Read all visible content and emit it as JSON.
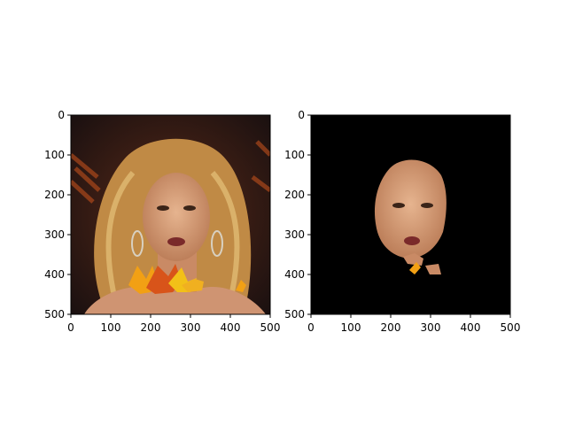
{
  "chart_data": [
    {
      "type": "image",
      "content": "portrait-photo",
      "description_icon": "face-with-leaf-overlay",
      "x_ticks": [
        "0",
        "100",
        "200",
        "300",
        "400",
        "500"
      ],
      "y_ticks": [
        "0",
        "100",
        "200",
        "300",
        "400",
        "500"
      ],
      "xlim": [
        0,
        500
      ],
      "ylim": [
        500,
        0
      ]
    },
    {
      "type": "image",
      "content": "segmentation-mask-result",
      "description_icon": "masked-face",
      "x_ticks": [
        "0",
        "100",
        "200",
        "300",
        "400",
        "500"
      ],
      "y_ticks": [
        "0",
        "100",
        "200",
        "300",
        "400",
        "500"
      ],
      "xlim": [
        0,
        500
      ],
      "ylim": [
        500,
        0
      ],
      "background_color": "#000000"
    }
  ],
  "colors": {
    "skin": "#d9a07a",
    "hair": "#c9954a",
    "leaf": "#f2a014",
    "leaf_dark": "#d8541a",
    "bg_dark": "#2a1a14"
  }
}
